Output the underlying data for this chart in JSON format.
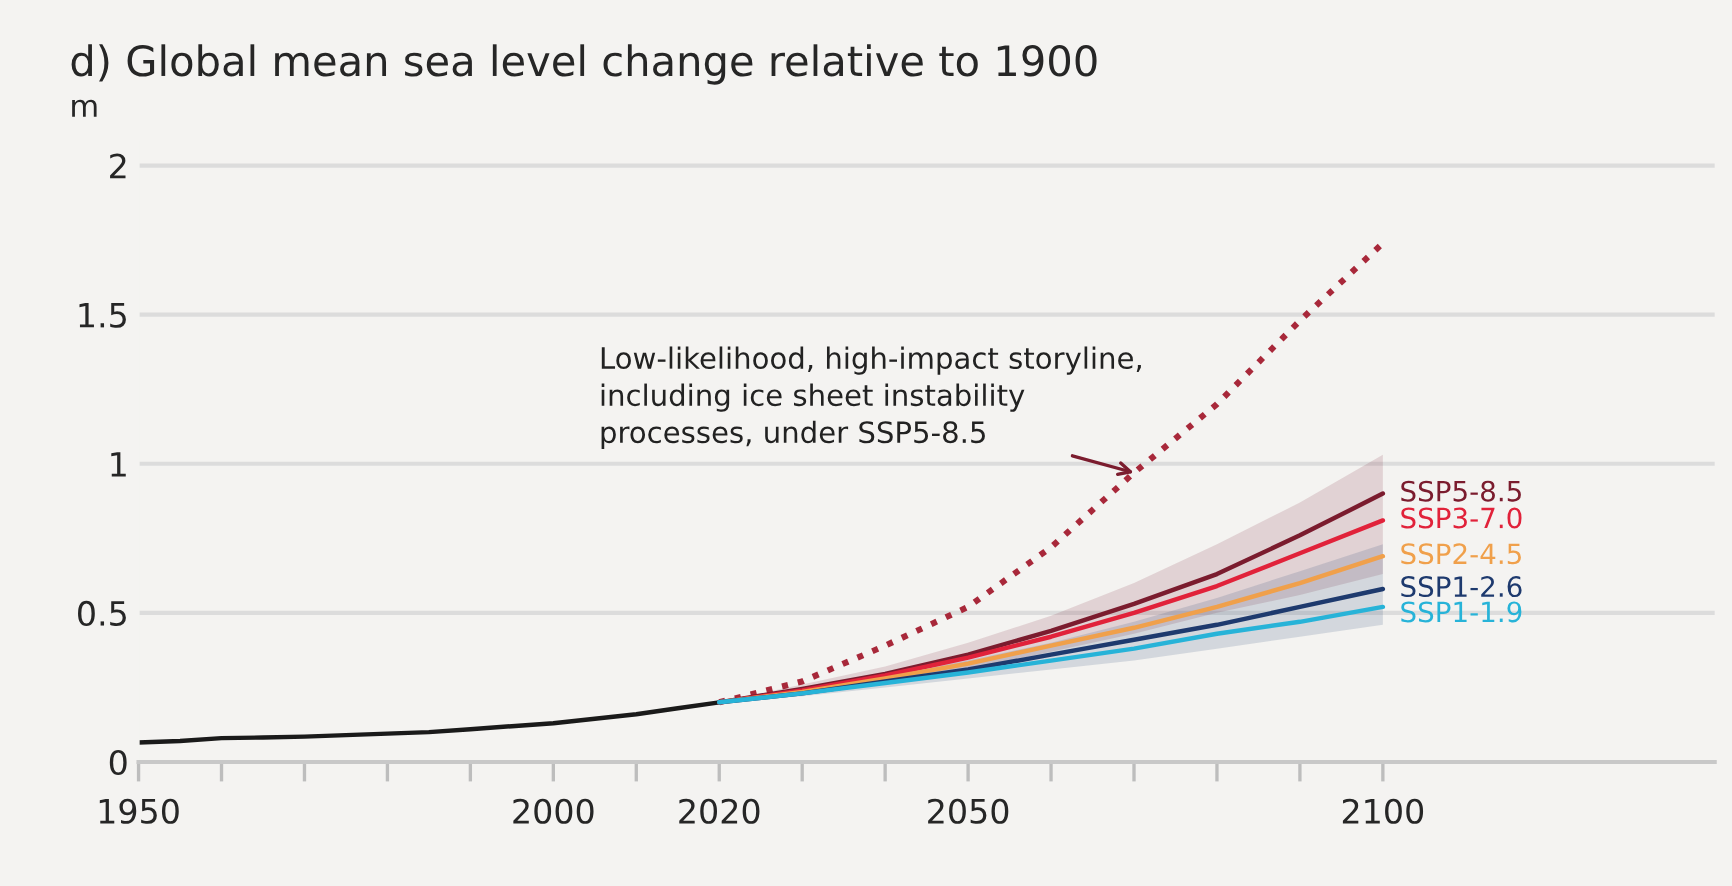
{
  "chart_data": {
    "type": "line",
    "title": "d) Global mean sea level change relative to 1900",
    "ylabel": "m",
    "xlim": [
      1950,
      2140
    ],
    "ylim": [
      0,
      2.08
    ],
    "xticks": [
      1950,
      {
        "value": 1960,
        "label": null
      },
      {
        "value": 1970,
        "label": null
      },
      {
        "value": 1980,
        "label": null
      },
      {
        "value": 1990,
        "label": null
      },
      2000,
      {
        "value": 2010,
        "label": null
      },
      2020,
      {
        "value": 2030,
        "label": null
      },
      {
        "value": 2040,
        "label": null
      },
      2050,
      {
        "value": 2060,
        "label": null
      },
      {
        "value": 2070,
        "label": null
      },
      {
        "value": 2080,
        "label": null
      },
      {
        "value": 2090,
        "label": null
      },
      2100
    ],
    "yticks": [
      0,
      0.5,
      1,
      1.5,
      2
    ],
    "grid": "y",
    "legend": false,
    "series": [
      {
        "color": "#1a1a1a",
        "x": [
          1950,
          1955,
          1960,
          1965,
          1970,
          1975,
          1980,
          1985,
          1990,
          1995,
          2000,
          2005,
          2010,
          2015,
          2020
        ],
        "values": [
          0.065,
          0.07,
          0.08,
          0.082,
          0.085,
          0.09,
          0.095,
          0.1,
          0.11,
          0.12,
          0.13,
          0.145,
          0.16,
          0.18,
          0.2
        ]
      },
      {
        "color": "#a8283a",
        "line_style": "dotted",
        "x": [
          2020,
          2030,
          2040,
          2050,
          2060,
          2070,
          2080,
          2090,
          2100
        ],
        "values": [
          0.2,
          0.27,
          0.39,
          0.52,
          0.72,
          0.97,
          1.2,
          1.48,
          1.74
        ]
      },
      {
        "name": "SSP5-8.5",
        "color": "#7b1c2e",
        "x": [
          2020,
          2030,
          2040,
          2050,
          2060,
          2070,
          2080,
          2090,
          2100
        ],
        "values": [
          0.2,
          0.245,
          0.295,
          0.36,
          0.44,
          0.53,
          0.63,
          0.76,
          0.9
        ],
        "lower": [
          0.2,
          0.23,
          0.27,
          0.31,
          0.37,
          0.43,
          0.5,
          0.56,
          0.63
        ],
        "upper": [
          0.2,
          0.26,
          0.32,
          0.4,
          0.49,
          0.6,
          0.73,
          0.87,
          1.03
        ]
      },
      {
        "name": "SSP3-7.0",
        "color": "#e1223a",
        "x": [
          2020,
          2030,
          2040,
          2050,
          2060,
          2070,
          2080,
          2090,
          2100
        ],
        "values": [
          0.2,
          0.24,
          0.29,
          0.35,
          0.42,
          0.5,
          0.59,
          0.7,
          0.81
        ]
      },
      {
        "name": "SSP2-4.5",
        "color": "#f0a04b",
        "x": [
          2020,
          2030,
          2040,
          2050,
          2060,
          2070,
          2080,
          2090,
          2100
        ],
        "values": [
          0.2,
          0.235,
          0.28,
          0.33,
          0.39,
          0.45,
          0.52,
          0.6,
          0.69
        ]
      },
      {
        "name": "SSP1-2.6",
        "color": "#1e3a6e",
        "x": [
          2020,
          2030,
          2040,
          2050,
          2060,
          2070,
          2080,
          2090,
          2100
        ],
        "values": [
          0.2,
          0.23,
          0.27,
          0.31,
          0.36,
          0.41,
          0.46,
          0.52,
          0.58
        ],
        "lower": [
          0.2,
          0.22,
          0.25,
          0.28,
          0.31,
          0.34,
          0.38,
          0.42,
          0.46
        ],
        "upper": [
          0.2,
          0.24,
          0.29,
          0.34,
          0.4,
          0.47,
          0.55,
          0.64,
          0.73
        ]
      },
      {
        "name": "SSP1-1.9",
        "color": "#27b3d8",
        "x": [
          2020,
          2030,
          2040,
          2050,
          2060,
          2070,
          2080,
          2090,
          2100
        ],
        "values": [
          0.2,
          0.23,
          0.265,
          0.3,
          0.34,
          0.38,
          0.43,
          0.47,
          0.52
        ]
      }
    ],
    "annotations": [
      {
        "text": "Low-likelihood, high-impact storyline,\nincluding ice sheet instability\nprocesses, under SSP5-8.5",
        "x": 2070,
        "y": 0.97
      }
    ]
  }
}
